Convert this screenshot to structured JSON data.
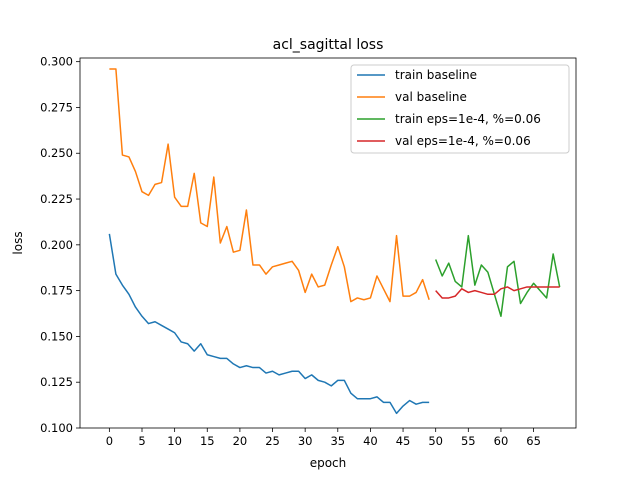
{
  "chart_data": {
    "type": "line",
    "title": "acl_sagittal loss",
    "xlabel": "epoch",
    "ylabel": "loss",
    "xlim": [
      -4.5,
      71.5
    ],
    "ylim": [
      0.1,
      0.302
    ],
    "x_ticks": [
      0,
      5,
      10,
      15,
      20,
      25,
      30,
      35,
      40,
      45,
      50,
      55,
      60,
      65
    ],
    "y_ticks": [
      0.1,
      0.125,
      0.15,
      0.175,
      0.2,
      0.225,
      0.25,
      0.275,
      0.3
    ],
    "y_tick_labels": [
      "0.100",
      "0.125",
      "0.150",
      "0.175",
      "0.200",
      "0.225",
      "0.250",
      "0.275",
      "0.300"
    ],
    "grid": false,
    "legend_position": "top-right",
    "series": [
      {
        "name": "train baseline",
        "color": "#1f77b4",
        "x": [
          0,
          1,
          2,
          3,
          4,
          5,
          6,
          7,
          8,
          9,
          10,
          11,
          12,
          13,
          14,
          15,
          16,
          17,
          18,
          19,
          20,
          21,
          22,
          23,
          24,
          25,
          26,
          27,
          28,
          29,
          30,
          31,
          32,
          33,
          34,
          35,
          36,
          37,
          38,
          39,
          40,
          41,
          42,
          43,
          44,
          45,
          46,
          47,
          48,
          49
        ],
        "values": [
          0.206,
          0.184,
          0.178,
          0.173,
          0.166,
          0.161,
          0.157,
          0.158,
          0.156,
          0.154,
          0.152,
          0.147,
          0.146,
          0.142,
          0.146,
          0.14,
          0.139,
          0.138,
          0.138,
          0.135,
          0.133,
          0.134,
          0.133,
          0.133,
          0.13,
          0.131,
          0.129,
          0.13,
          0.131,
          0.131,
          0.127,
          0.129,
          0.126,
          0.125,
          0.123,
          0.126,
          0.126,
          0.119,
          0.116,
          0.116,
          0.116,
          0.117,
          0.114,
          0.114,
          0.108,
          0.112,
          0.115,
          0.113,
          0.114,
          0.114
        ]
      },
      {
        "name": "val baseline",
        "color": "#ff7f0e",
        "x": [
          0,
          1,
          2,
          3,
          4,
          5,
          6,
          7,
          8,
          9,
          10,
          11,
          12,
          13,
          14,
          15,
          16,
          17,
          18,
          19,
          20,
          21,
          22,
          23,
          24,
          25,
          26,
          27,
          28,
          29,
          30,
          31,
          32,
          33,
          34,
          35,
          36,
          37,
          38,
          39,
          40,
          41,
          42,
          43,
          44,
          45,
          46,
          47,
          48,
          49
        ],
        "values": [
          0.296,
          0.296,
          0.249,
          0.248,
          0.24,
          0.229,
          0.227,
          0.233,
          0.234,
          0.255,
          0.226,
          0.221,
          0.221,
          0.239,
          0.212,
          0.21,
          0.237,
          0.201,
          0.21,
          0.196,
          0.197,
          0.219,
          0.189,
          0.189,
          0.184,
          0.188,
          0.189,
          0.19,
          0.191,
          0.186,
          0.174,
          0.184,
          0.177,
          0.178,
          0.189,
          0.199,
          0.188,
          0.169,
          0.171,
          0.17,
          0.171,
          0.183,
          0.176,
          0.169,
          0.205,
          0.172,
          0.172,
          0.174,
          0.181,
          0.17
        ]
      },
      {
        "name": "train eps=1e-4, %=0.06",
        "color": "#2ca02c",
        "x": [
          50,
          51,
          52,
          53,
          54,
          55,
          56,
          57,
          58,
          59,
          60,
          61,
          62,
          63,
          64,
          65,
          66,
          67,
          68,
          69
        ],
        "values": [
          0.192,
          0.183,
          0.19,
          0.18,
          0.177,
          0.205,
          0.178,
          0.189,
          0.185,
          0.173,
          0.161,
          0.188,
          0.191,
          0.168,
          0.174,
          0.179,
          0.175,
          0.171,
          0.195,
          0.177
        ]
      },
      {
        "name": "val eps=1e-4, %=0.06",
        "color": "#d62728",
        "x": [
          50,
          51,
          52,
          53,
          54,
          55,
          56,
          57,
          58,
          59,
          60,
          61,
          62,
          63,
          64,
          65,
          66,
          67,
          68,
          69
        ],
        "values": [
          0.175,
          0.171,
          0.171,
          0.172,
          0.176,
          0.174,
          0.175,
          0.174,
          0.173,
          0.173,
          0.176,
          0.177,
          0.175,
          0.176,
          0.177,
          0.177,
          0.177,
          0.177,
          0.177,
          0.177
        ]
      }
    ]
  }
}
